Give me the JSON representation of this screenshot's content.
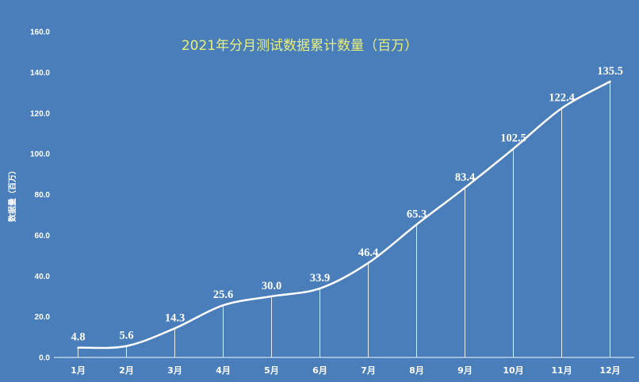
{
  "chart_data": {
    "type": "line",
    "title": "2021年分月测试数据累计数量（百万）",
    "xlabel": "",
    "ylabel": "数据量（百万）",
    "categories": [
      "1月",
      "2月",
      "3月",
      "4月",
      "5月",
      "6月",
      "7月",
      "8月",
      "9月",
      "10月",
      "11月",
      "12月"
    ],
    "values": [
      4.8,
      5.6,
      14.3,
      25.6,
      30.0,
      33.9,
      46.4,
      65.3,
      83.4,
      102.5,
      122.4,
      135.5
    ],
    "ylim": [
      0,
      160
    ],
    "yticks": [
      "0.0",
      "20.0",
      "40.0",
      "60.0",
      "80.0",
      "100.0",
      "120.0",
      "140.0",
      "160.0"
    ],
    "grid": false,
    "legend": false,
    "smooth": true,
    "drop_lines": true,
    "data_labels": true,
    "colors": {
      "background": "#4a7ebb",
      "line": "#ffffff",
      "title": "#e8f07a",
      "text": "#ffffff"
    }
  }
}
